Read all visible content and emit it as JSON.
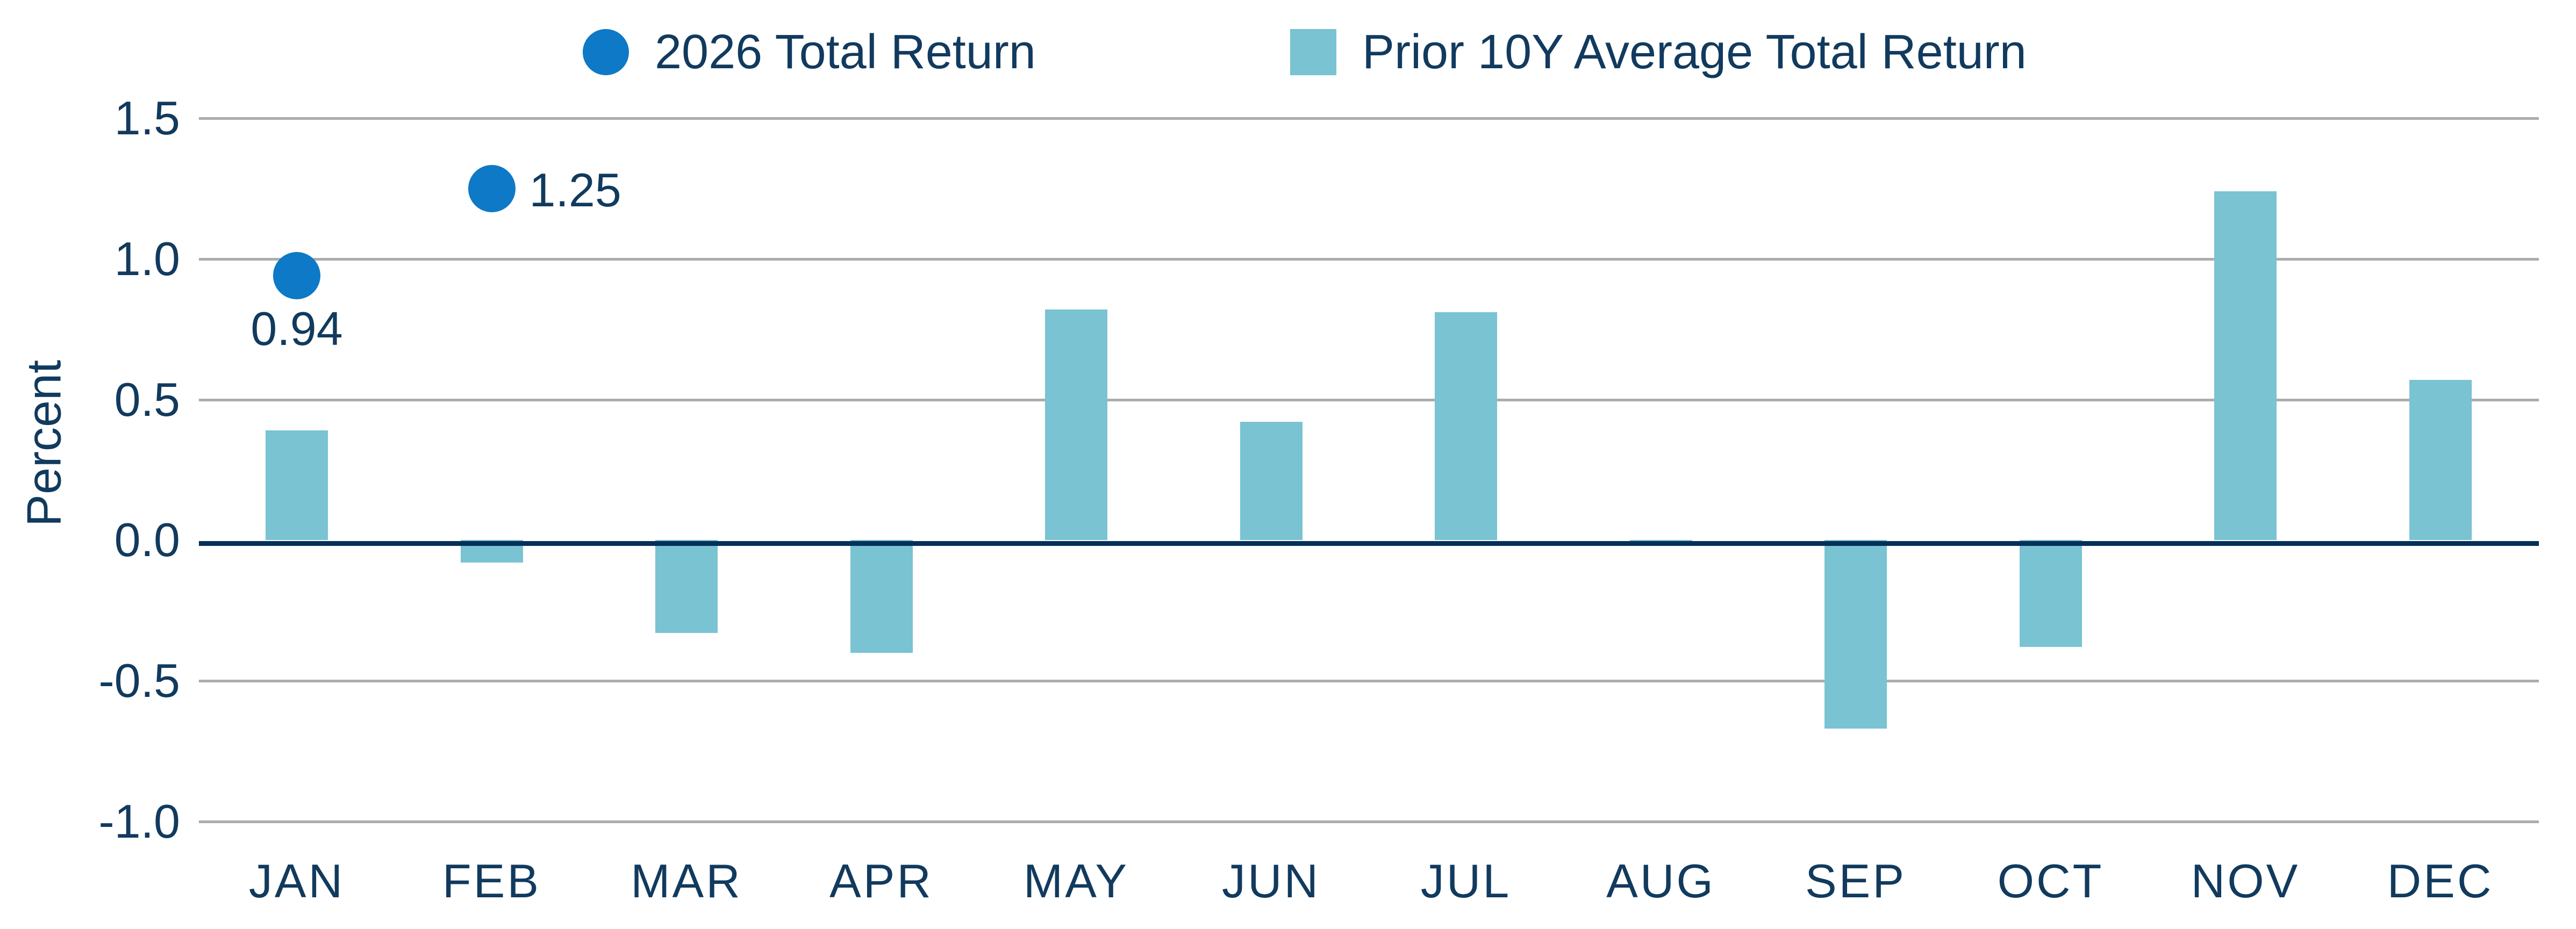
{
  "colors": {
    "text": "#113A5E",
    "axis_line": "#05305A",
    "gridline": "#ACACAC",
    "background": "#FFFFFF",
    "accent_dot": "#0E79C6",
    "accent_bar": "#79C3D3"
  },
  "chart_data": {
    "type": "bar",
    "title": "",
    "ylabel": "Percent",
    "xlabel": "",
    "categories": [
      "JAN",
      "FEB",
      "MAR",
      "APR",
      "MAY",
      "JUN",
      "JUL",
      "AUG",
      "SEP",
      "OCT",
      "NOV",
      "DEC"
    ],
    "ylim": [
      -1.0,
      1.5
    ],
    "y_ticks": [
      1.5,
      1.0,
      0.5,
      0.0,
      -0.5,
      -1.0
    ],
    "grid": true,
    "legend_position": "top",
    "series": [
      {
        "name": "2026 Total Return",
        "type": "scatter",
        "marker": "circle",
        "color": "#0E79C6",
        "points": [
          {
            "category": "JAN",
            "value": 0.94,
            "label": "0.94",
            "label_side": "below"
          },
          {
            "category": "FEB",
            "value": 1.25,
            "label": "1.25",
            "label_side": "right"
          }
        ]
      },
      {
        "name": "Prior 10Y Average Total Return",
        "type": "bar",
        "marker": "square",
        "color": "#79C3D3",
        "values": [
          0.39,
          -0.08,
          -0.33,
          -0.4,
          0.82,
          0.42,
          0.81,
          -0.02,
          -0.67,
          -0.38,
          1.24,
          0.57
        ]
      }
    ]
  }
}
